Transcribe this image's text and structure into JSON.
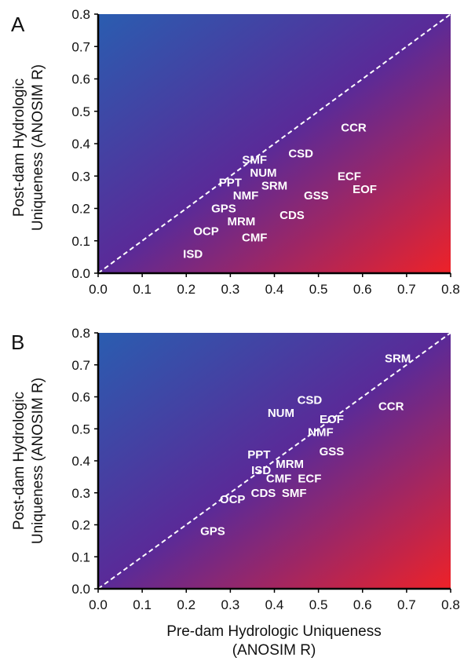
{
  "chart_data": [
    {
      "type": "scatter",
      "panel_label": "A",
      "ylabel_line1": "Post-dam Hydrologic",
      "ylabel_line2": "Uniqueness (ANOSIM R)",
      "xlim": [
        0.0,
        0.8
      ],
      "ylim": [
        0.0,
        0.8
      ],
      "x_ticks": [
        "0.0",
        "0.1",
        "0.2",
        "0.3",
        "0.4",
        "0.5",
        "0.6",
        "0.7",
        "0.8"
      ],
      "y_ticks": [
        "0.0",
        "0.1",
        "0.2",
        "0.3",
        "0.4",
        "0.5",
        "0.6",
        "0.7",
        "0.8"
      ],
      "reference_line": "y = x (dashed)",
      "background_gradient": [
        "#2a5db0",
        "#5a2a98",
        "#ee2228"
      ],
      "points": [
        {
          "label": "CCR",
          "x": 0.58,
          "y": 0.45
        },
        {
          "label": "CSD",
          "x": 0.46,
          "y": 0.37
        },
        {
          "label": "SMF",
          "x": 0.355,
          "y": 0.35
        },
        {
          "label": "NUM",
          "x": 0.375,
          "y": 0.31
        },
        {
          "label": "ECF",
          "x": 0.57,
          "y": 0.3
        },
        {
          "label": "PPT",
          "x": 0.3,
          "y": 0.28
        },
        {
          "label": "SRM",
          "x": 0.4,
          "y": 0.27
        },
        {
          "label": "EOF",
          "x": 0.605,
          "y": 0.26
        },
        {
          "label": "NMF",
          "x": 0.335,
          "y": 0.24
        },
        {
          "label": "GSS",
          "x": 0.495,
          "y": 0.24
        },
        {
          "label": "GPS",
          "x": 0.285,
          "y": 0.2
        },
        {
          "label": "CDS",
          "x": 0.44,
          "y": 0.18
        },
        {
          "label": "MRM",
          "x": 0.325,
          "y": 0.16
        },
        {
          "label": "OCP",
          "x": 0.245,
          "y": 0.13
        },
        {
          "label": "CMF",
          "x": 0.355,
          "y": 0.11
        },
        {
          "label": "ISD",
          "x": 0.215,
          "y": 0.06
        }
      ]
    },
    {
      "type": "scatter",
      "panel_label": "B",
      "ylabel_line1": "Post-dam Hydrologic",
      "ylabel_line2": "Uniqueness (ANOSIM R)",
      "xlabel_line1": "Pre-dam Hydrologic Uniqueness",
      "xlabel_line2": "(ANOSIM R)",
      "xlim": [
        0.0,
        0.8
      ],
      "ylim": [
        0.0,
        0.8
      ],
      "x_ticks": [
        "0.0",
        "0.1",
        "0.2",
        "0.3",
        "0.4",
        "0.5",
        "0.6",
        "0.7",
        "0.8"
      ],
      "y_ticks": [
        "0.0",
        "0.1",
        "0.2",
        "0.3",
        "0.4",
        "0.5",
        "0.6",
        "0.7",
        "0.8"
      ],
      "reference_line": "y = x (dashed)",
      "background_gradient": [
        "#2a5db0",
        "#5a2a98",
        "#ee2228"
      ],
      "points": [
        {
          "label": "SRM",
          "x": 0.68,
          "y": 0.72
        },
        {
          "label": "CSD",
          "x": 0.48,
          "y": 0.59
        },
        {
          "label": "CCR",
          "x": 0.665,
          "y": 0.57
        },
        {
          "label": "NUM",
          "x": 0.415,
          "y": 0.55
        },
        {
          "label": "EOF",
          "x": 0.53,
          "y": 0.53
        },
        {
          "label": "NMF",
          "x": 0.505,
          "y": 0.49
        },
        {
          "label": "GSS",
          "x": 0.53,
          "y": 0.43
        },
        {
          "label": "PPT",
          "x": 0.365,
          "y": 0.42
        },
        {
          "label": "MRM",
          "x": 0.435,
          "y": 0.39
        },
        {
          "label": "ISD",
          "x": 0.37,
          "y": 0.37
        },
        {
          "label": "CMF",
          "x": 0.41,
          "y": 0.345
        },
        {
          "label": "ECF",
          "x": 0.48,
          "y": 0.345
        },
        {
          "label": "CDS",
          "x": 0.375,
          "y": 0.3
        },
        {
          "label": "SMF",
          "x": 0.445,
          "y": 0.3
        },
        {
          "label": "OCP",
          "x": 0.305,
          "y": 0.28
        },
        {
          "label": "GPS",
          "x": 0.26,
          "y": 0.18
        }
      ]
    }
  ]
}
